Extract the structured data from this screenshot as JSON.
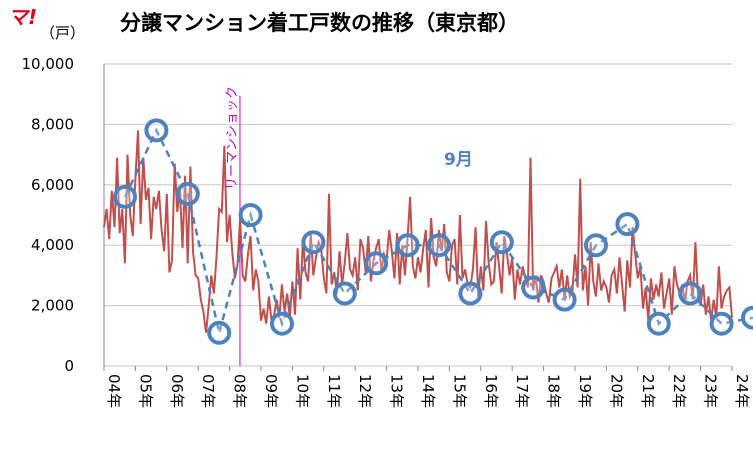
{
  "logo": "マ!",
  "colors": {
    "monthly_line": "#c0504d",
    "september_series": "#4f81bd",
    "annotation": "#cc00cc",
    "logo": "#e8001c",
    "grid": "#c8c8c8"
  },
  "chart_data": {
    "type": "line",
    "title": "分譲マンション着工戸数の推移（東京都）",
    "ylabel": "（戸）",
    "ylim": [
      0,
      10000
    ],
    "yticks": [
      "0",
      "2,000",
      "4,000",
      "6,000",
      "8,000",
      "10,000"
    ],
    "ytick_values": [
      0,
      2000,
      4000,
      6000,
      8000,
      10000
    ],
    "xlim": [
      2004,
      2024
    ],
    "xticks": [
      "04年",
      "05年",
      "06年",
      "07年",
      "08年",
      "09年",
      "10年",
      "11年",
      "12年",
      "13年",
      "14年",
      "15年",
      "16年",
      "17年",
      "18年",
      "19年",
      "20年",
      "21年",
      "22年",
      "23年",
      "24年"
    ],
    "grid": "horizontal",
    "annotation": {
      "text": "リーマンショック",
      "x": 2008.33
    },
    "series": [
      {
        "name": "",
        "style": "solid",
        "x_start": 2004,
        "x_step_months": 1,
        "values": [
          4600,
          5200,
          4200,
          5800,
          4600,
          6900,
          4400,
          5200,
          3400,
          7000,
          5000,
          4300,
          6200,
          7800,
          4700,
          6900,
          5500,
          5900,
          4200,
          5600,
          5200,
          5800,
          4500,
          3800,
          5700,
          3100,
          3500,
          6700,
          5100,
          5900,
          3900,
          6300,
          3400,
          6600,
          3800,
          3000,
          2900,
          2200,
          1800,
          1100,
          2000,
          3000,
          2400,
          3600,
          5200,
          5100,
          7300,
          4100,
          5000,
          3800,
          2900,
          3300,
          4900,
          3000,
          2800,
          3700,
          4300,
          2500,
          3200,
          2800,
          1500,
          1900,
          1400,
          2300,
          1500,
          1700,
          2200,
          1600,
          2700,
          1800,
          2400,
          1600,
          2800,
          1700,
          3900,
          2200,
          4200,
          3100,
          2800,
          4400,
          3000,
          3600,
          4100,
          3900,
          2900,
          2400,
          5700,
          2700,
          3100,
          2400,
          3800,
          2700,
          3400,
          4400,
          3200,
          3000,
          3600,
          2500,
          4200,
          3900,
          3100,
          4300,
          2800,
          3500,
          3900,
          4200,
          3100,
          3700,
          3500,
          4500,
          3800,
          2900,
          4400,
          2700,
          4000,
          3000,
          4200,
          5600,
          3300,
          2900,
          3600,
          3100,
          3900,
          4500,
          2600,
          4900,
          3600,
          3300,
          4500,
          3800,
          4700,
          3100,
          2800,
          4000,
          4200,
          2700,
          5000,
          2900,
          3200,
          2700,
          2600,
          3200,
          4600,
          2300,
          3300,
          2500,
          4800,
          3400,
          2700,
          2800,
          4100,
          3300,
          2400,
          4300,
          3700,
          3000,
          3600,
          2200,
          3200,
          2700,
          3300,
          2900,
          2600,
          6900,
          2500,
          3000,
          2100,
          3000,
          2800,
          2400,
          2100,
          2900,
          3100,
          3300,
          2600,
          3200,
          2200,
          3000,
          2300,
          2500,
          3700,
          2600,
          6200,
          2500,
          3300,
          2000,
          4100,
          2800,
          2300,
          3400,
          2500,
          2800,
          2600,
          2100,
          3000,
          3200,
          2400,
          3600,
          2700,
          1800,
          3500,
          2600,
          4600,
          3700,
          2900,
          3300,
          1900,
          2600,
          1500,
          2900,
          2200,
          2700,
          2300,
          3100,
          1900,
          2400,
          2900,
          1700,
          3300,
          2700,
          2400,
          2700,
          2100,
          2800,
          3000,
          2200,
          4100,
          2300,
          2000,
          2700,
          1700,
          2300,
          1500,
          2200,
          1600,
          3300,
          1900,
          2300,
          2500,
          2600,
          1600
        ]
      },
      {
        "name": "9月",
        "style": "dashed-markers",
        "x": [
          2004.67,
          2005.67,
          2006.67,
          2007.67,
          2008.67,
          2009.67,
          2010.67,
          2011.67,
          2012.67,
          2013.67,
          2014.67,
          2015.67,
          2016.67,
          2017.67,
          2018.67,
          2019.67,
          2020.67,
          2021.67,
          2022.67,
          2023.67,
          2024.67
        ],
        "values": [
          5600,
          7800,
          5700,
          1100,
          5000,
          1400,
          4100,
          2400,
          3400,
          4000,
          4000,
          2400,
          4100,
          2600,
          2200,
          4000,
          4700,
          1400,
          2400,
          1400,
          1600
        ]
      }
    ]
  }
}
